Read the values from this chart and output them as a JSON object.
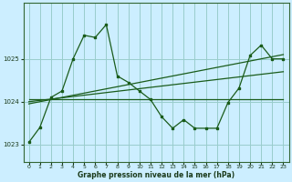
{
  "bg_color": "#cceeff",
  "line_color": "#1a5c1a",
  "grid_color": "#99cccc",
  "xlabel": "Graphe pression niveau de la mer (hPa)",
  "ylim": [
    1022.6,
    1026.3
  ],
  "yticks": [
    1023,
    1024,
    1025
  ],
  "xlim": [
    -0.5,
    23.5
  ],
  "xticks": [
    0,
    1,
    2,
    3,
    4,
    5,
    6,
    7,
    8,
    9,
    10,
    11,
    12,
    13,
    14,
    15,
    16,
    17,
    18,
    19,
    20,
    21,
    22,
    23
  ],
  "series1": {
    "x": [
      0,
      1,
      2,
      3,
      4,
      5,
      6,
      7,
      8,
      9,
      10,
      11,
      12,
      13,
      14,
      15,
      16,
      17,
      18,
      19,
      20,
      21,
      22,
      23
    ],
    "y": [
      1023.05,
      1023.4,
      1024.1,
      1024.25,
      1025.0,
      1025.55,
      1025.5,
      1025.8,
      1024.6,
      1024.45,
      1024.25,
      1024.05,
      1023.65,
      1023.38,
      1023.58,
      1023.38,
      1023.38,
      1023.38,
      1023.98,
      1024.32,
      1025.08,
      1025.32,
      1025.0,
      1025.0
    ]
  },
  "series2_linear": {
    "x": [
      0,
      23
    ],
    "y": [
      1024.05,
      1024.05
    ]
  },
  "series3_linear": {
    "x": [
      0,
      23
    ],
    "y": [
      1024.0,
      1024.7
    ]
  },
  "series4_linear": {
    "x": [
      0,
      23
    ],
    "y": [
      1023.95,
      1025.1
    ]
  }
}
